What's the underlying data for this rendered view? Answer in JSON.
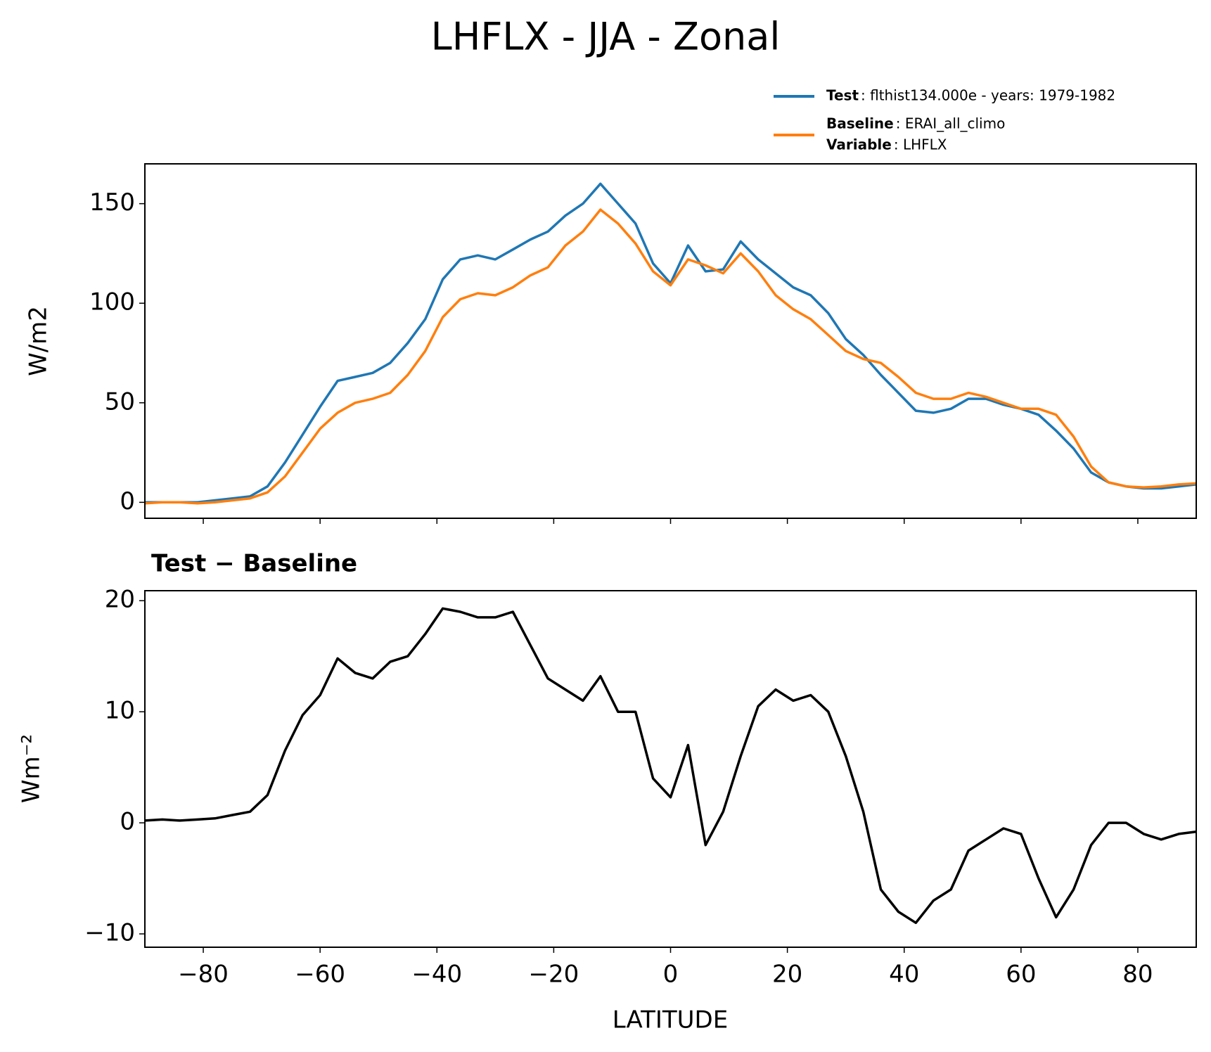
{
  "chart_data": [
    {
      "type": "line",
      "title": "LHFLX - JJA - Zonal",
      "ylabel": "W/m2",
      "x": [
        -90,
        -87,
        -84,
        -81,
        -78,
        -75,
        -72,
        -69,
        -66,
        -63,
        -60,
        -57,
        -54,
        -51,
        -48,
        -45,
        -42,
        -39,
        -36,
        -33,
        -30,
        -27,
        -24,
        -21,
        -18,
        -15,
        -12,
        -9,
        -6,
        -3,
        0,
        3,
        6,
        9,
        12,
        15,
        18,
        21,
        24,
        27,
        30,
        33,
        36,
        39,
        42,
        45,
        48,
        51,
        54,
        57,
        60,
        63,
        66,
        69,
        72,
        75,
        78,
        81,
        84,
        87,
        90
      ],
      "series": [
        {
          "name": "Test",
          "label": ": flthist134.000e - years: 1979-1982",
          "color": "#1f77b4",
          "values": [
            0,
            0,
            0,
            0,
            1,
            2,
            3,
            8,
            20,
            34,
            48,
            61,
            63,
            65,
            70,
            80,
            92,
            112,
            122,
            124,
            122,
            127,
            132,
            136,
            144,
            150,
            160,
            150,
            140,
            120,
            110,
            129,
            116,
            117,
            131,
            122,
            115,
            108,
            104,
            95,
            82,
            74,
            64,
            55,
            46,
            45,
            47,
            52,
            52,
            49,
            47,
            44,
            36,
            27,
            15,
            10,
            8,
            7,
            7,
            8,
            9
          ]
        },
        {
          "name": "Baseline",
          "label": ": ERAI_all_climo",
          "color": "#ff7f0e",
          "values": [
            -0.5,
            0,
            0,
            -0.5,
            0,
            1,
            2,
            5,
            13,
            25,
            37,
            45,
            50,
            52,
            55,
            64,
            76,
            93,
            102,
            105,
            104,
            108,
            114,
            118,
            129,
            136,
            147,
            140,
            130,
            116,
            109,
            122,
            119,
            115,
            125,
            116,
            104,
            97,
            92,
            84,
            76,
            72,
            70,
            63,
            55,
            52,
            52,
            55,
            53,
            50,
            47,
            47,
            44,
            33,
            18,
            10,
            8,
            7.5,
            8,
            9,
            9.5
          ]
        }
      ],
      "legend_extra": {
        "name": "Variable",
        "label": ": LHFLX"
      },
      "xlim": [
        -90,
        90
      ],
      "xticks": [
        -80,
        -60,
        -40,
        -20,
        0,
        20,
        40,
        60,
        80
      ],
      "ylim": [
        -8,
        170
      ],
      "yticks": [
        0,
        50,
        100,
        150
      ]
    },
    {
      "type": "line",
      "title": "Test − Baseline",
      "xlabel": "LATITUDE",
      "ylabel": "Wm⁻²",
      "x": [
        -90,
        -87,
        -84,
        -81,
        -78,
        -75,
        -72,
        -69,
        -66,
        -63,
        -60,
        -57,
        -54,
        -51,
        -48,
        -45,
        -42,
        -39,
        -36,
        -33,
        -30,
        -27,
        -24,
        -21,
        -18,
        -15,
        -12,
        -9,
        -6,
        -3,
        0,
        3,
        6,
        9,
        12,
        15,
        18,
        21,
        24,
        27,
        30,
        33,
        36,
        39,
        42,
        45,
        48,
        51,
        54,
        57,
        60,
        63,
        66,
        69,
        72,
        75,
        78,
        81,
        84,
        87,
        90
      ],
      "series": [
        {
          "color": "#000000",
          "values": [
            0.2,
            0.3,
            0.2,
            0.3,
            0.4,
            0.7,
            1.0,
            2.5,
            6.5,
            9.7,
            11.5,
            14.8,
            13.5,
            13.0,
            14.5,
            15,
            17,
            19.3,
            19,
            18.5,
            18.5,
            19,
            16,
            13,
            12,
            11,
            13.2,
            10,
            10,
            4,
            2.3,
            7,
            -2,
            1,
            6,
            10.5,
            12,
            11,
            11.5,
            10,
            6,
            1,
            -6,
            -8,
            -9,
            -7,
            -6,
            -2.5,
            -1.5,
            -0.5,
            -1,
            -5,
            -8.5,
            -6,
            -2,
            0,
            0,
            -1,
            -1.5,
            -1,
            -0.8
          ]
        }
      ],
      "xlim": [
        -90,
        90
      ],
      "xticks": [
        {
          "value": -80,
          "label": "−80"
        },
        {
          "value": -60,
          "label": "−60"
        },
        {
          "value": -40,
          "label": "−40"
        },
        {
          "value": -20,
          "label": "−20"
        },
        0,
        20,
        40,
        60,
        80
      ],
      "ylim": [
        -11.2,
        20.9
      ],
      "yticks": [
        {
          "value": -10,
          "label": "−10"
        },
        0,
        10,
        20
      ]
    }
  ]
}
